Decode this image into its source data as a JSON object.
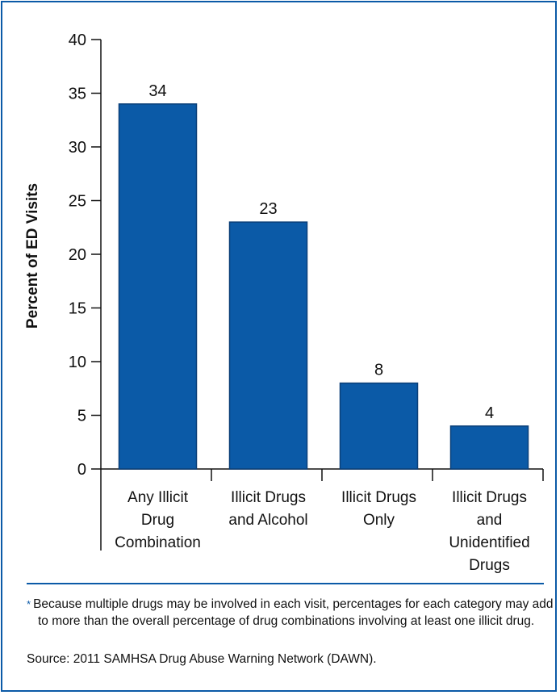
{
  "chart_data": {
    "type": "bar",
    "title": "",
    "ylabel": "Percent of ED Visits",
    "xlabel": "",
    "ylim": [
      0,
      40
    ],
    "yticks": [
      0,
      5,
      10,
      15,
      20,
      25,
      30,
      35,
      40
    ],
    "categories": [
      [
        "Any Illicit",
        "Drug",
        "Combination"
      ],
      [
        "Illicit Drugs",
        "and Alcohol"
      ],
      [
        "Illicit Drugs",
        "Only"
      ],
      [
        "Illicit Drugs",
        "and",
        "Unidentified",
        "Drugs"
      ]
    ],
    "values": [
      34,
      23,
      8,
      4
    ],
    "bar_color": "#0b5aa7",
    "grid": false,
    "legend": "none"
  },
  "footnotes": {
    "marker": "*",
    "note": "Because multiple drugs may be involved in each visit, percentages for each category may add to more than the overall percentage of drug combinations involving at least one illicit drug.",
    "source": "Source: 2011 SAMHSA Drug Abuse Warning Network (DAWN)."
  },
  "colors": {
    "accent": "#0b5aa7"
  }
}
